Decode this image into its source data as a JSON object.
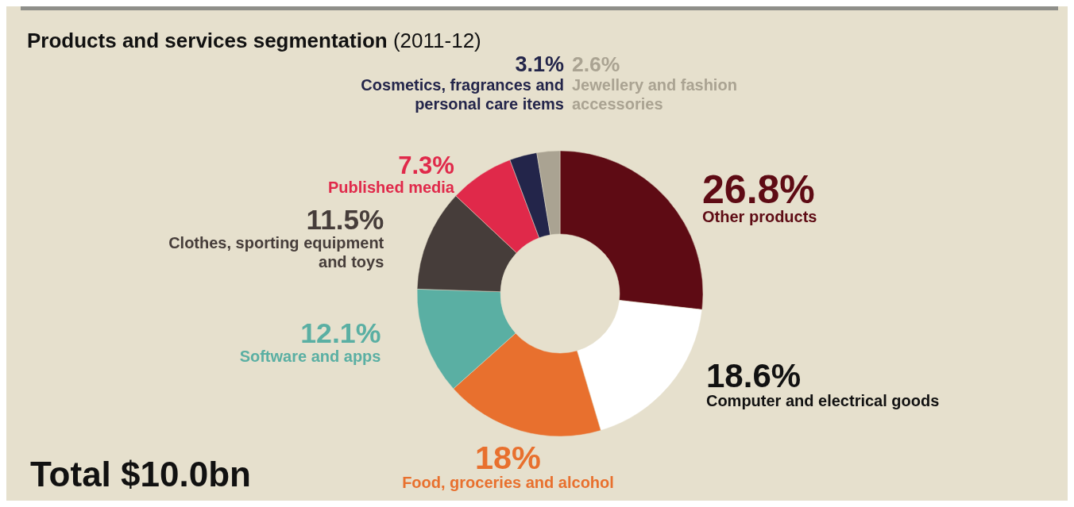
{
  "chart_data": {
    "type": "donut",
    "title": "Products and services segmentation",
    "subtitle": "(2011-12)",
    "categories": [
      "Other products",
      "Computer and electrical goods",
      "Food, groceries and alcohol",
      "Software and apps",
      "Clothes, sporting equipment and toys",
      "Published media",
      "Cosmetics, fragrances and personal care items",
      "Jewellery and fashion accessories"
    ],
    "values": [
      26.8,
      18.6,
      18,
      12.1,
      11.5,
      7.3,
      3.1,
      2.6
    ],
    "value_labels": [
      "26.8%",
      "18.6%",
      "18%",
      "12.1%",
      "11.5%",
      "7.3%",
      "3.1%",
      "2.6%"
    ],
    "colors": [
      "#5e0b14",
      "#ffffff",
      "#e8702e",
      "#5aafa3",
      "#463d3a",
      "#e0294a",
      "#23254a",
      "#aaa392"
    ],
    "annotations": [
      "Total $10.0bn"
    ]
  }
}
